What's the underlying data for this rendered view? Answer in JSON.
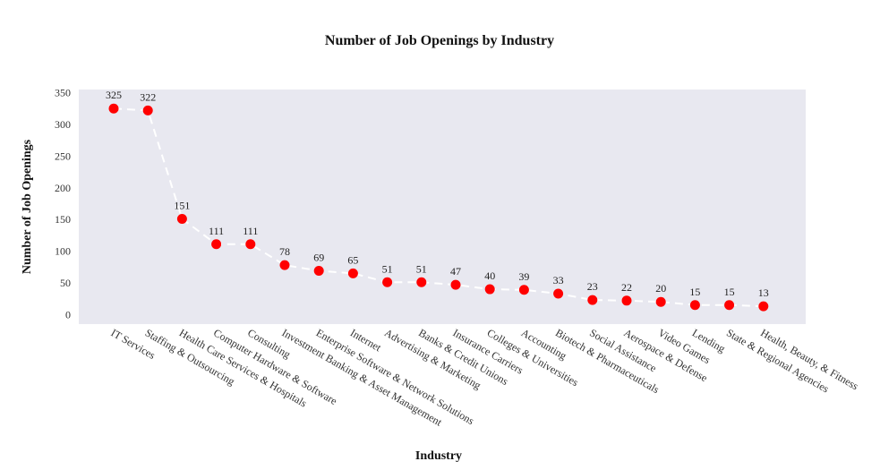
{
  "chart_data": {
    "type": "line",
    "title": "Number of Job Openings by Industry",
    "xlabel": "Industry",
    "ylabel": "Number of Job Openings",
    "ylim": [
      -15,
      355
    ],
    "yticks": [
      0,
      50,
      100,
      150,
      200,
      250,
      300,
      350
    ],
    "grid": false,
    "legend": "none",
    "categories": [
      "IT Services",
      "Staffing & Outsourcing",
      "Health Care Services & Hospitals",
      "Computer Hardware & Software",
      "Consulting",
      "Investment Banking & Asset Management",
      "Enterprise Software & Network Solutions",
      "Internet",
      "Advertising & Marketing",
      "Banks & Credit Unions",
      "Insurance Carriers",
      "Colleges & Universities",
      "Accounting",
      "Biotech & Pharmaceuticals",
      "Social Assistance",
      "Aerospace & Defense",
      "Video Games",
      "Lending",
      "State & Regional Agencies",
      "Health, Beauty, & Fitness"
    ],
    "series": [
      {
        "values": [
          325,
          322,
          151,
          111,
          111,
          78,
          69,
          65,
          51,
          51,
          47,
          40,
          39,
          33,
          23,
          22,
          20,
          15,
          15,
          13
        ],
        "marker_color": "#ff0000",
        "line_color": "#ffffff",
        "line_style": "dashed"
      }
    ],
    "plot_background": "#e8e8f0"
  }
}
